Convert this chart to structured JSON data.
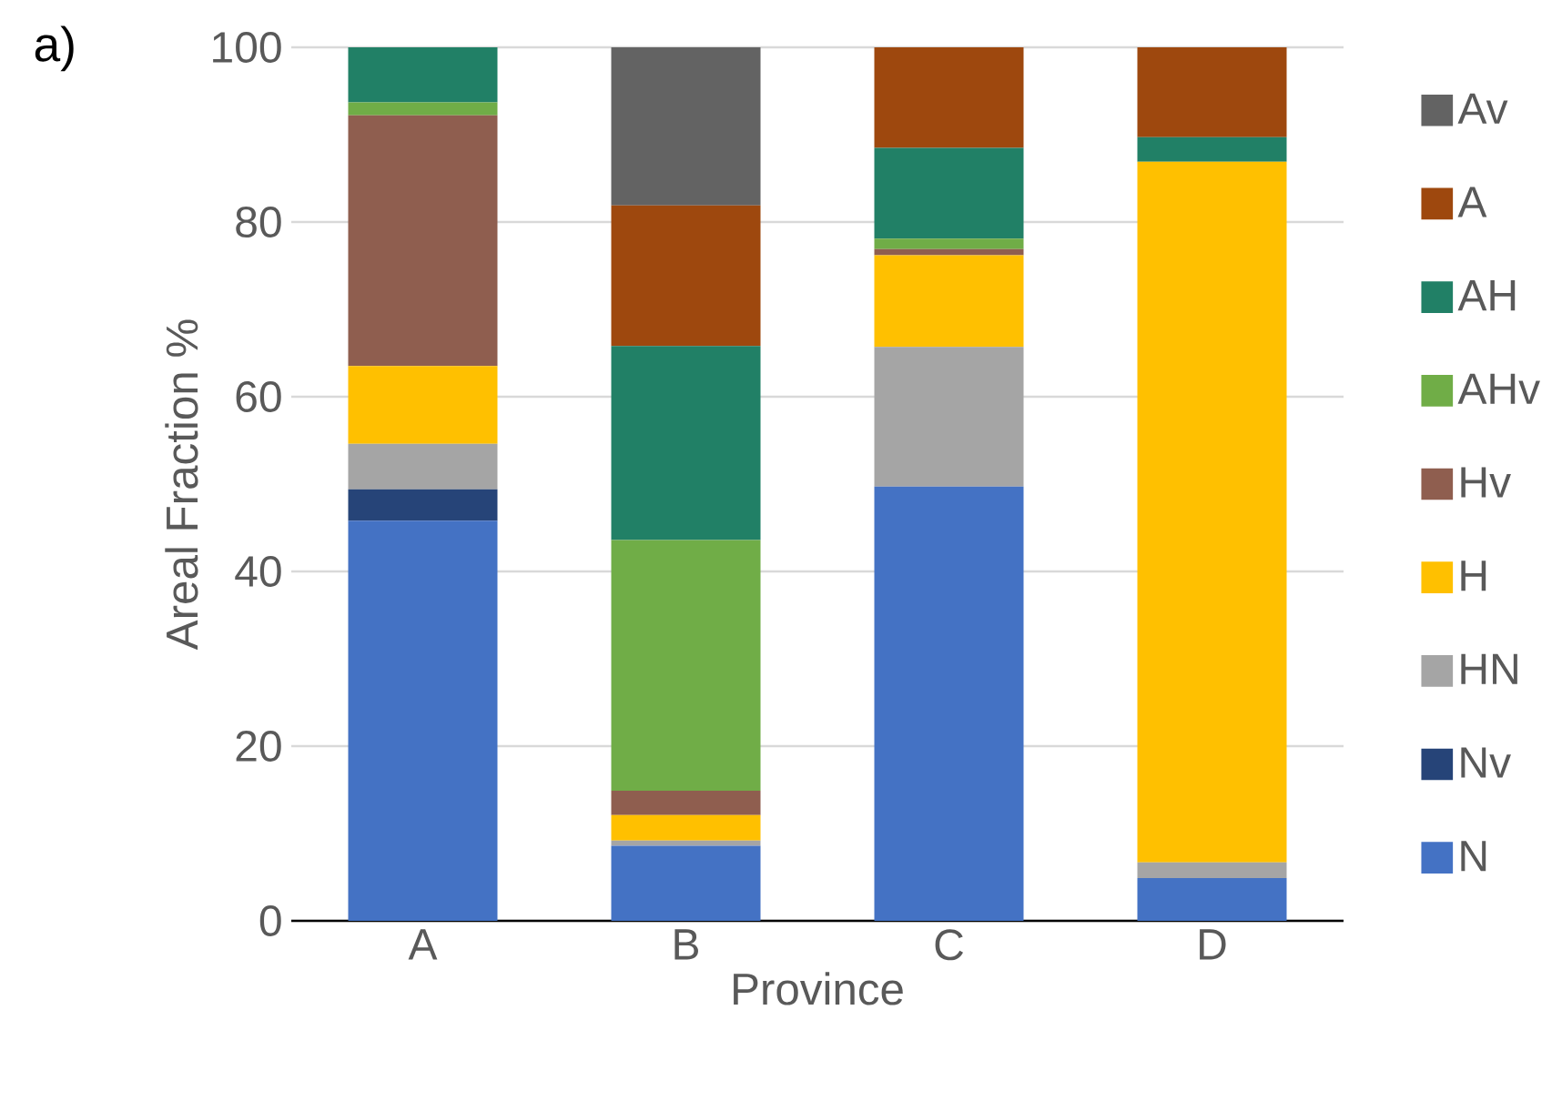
{
  "chart_data": {
    "type": "bar",
    "stacked": true,
    "categories": [
      "A",
      "B",
      "C",
      "D"
    ],
    "xlabel": "Province",
    "ylabel": "Areal Fraction %",
    "annotations": [
      "a)"
    ],
    "ylim": [
      0,
      100
    ],
    "yticks": [
      0,
      20,
      40,
      60,
      80,
      100
    ],
    "grid": "y",
    "legend": "right",
    "series": [
      {
        "name": "N",
        "color": "#4472c4",
        "values": [
          45.8,
          8.6,
          49.7,
          4.9
        ]
      },
      {
        "name": "Nv",
        "color": "#264478",
        "values": [
          3.6,
          0,
          0,
          0
        ]
      },
      {
        "name": "HN",
        "color": "#a5a5a5",
        "values": [
          5.2,
          0.6,
          16.0,
          1.8
        ]
      },
      {
        "name": "H",
        "color": "#ffc000",
        "values": [
          8.9,
          2.9,
          10.5,
          80.2
        ]
      },
      {
        "name": "Hv",
        "color": "#8f5e4f",
        "values": [
          28.7,
          2.8,
          0.7,
          0
        ]
      },
      {
        "name": "AHv",
        "color": "#70ad47",
        "values": [
          1.5,
          28.7,
          1.2,
          0
        ]
      },
      {
        "name": "AH",
        "color": "#218066",
        "values": [
          6.3,
          22.2,
          10.4,
          2.8
        ]
      },
      {
        "name": "A",
        "color": "#9e480e",
        "values": [
          0,
          16.1,
          11.5,
          10.3
        ]
      },
      {
        "name": "Av",
        "color": "#636363",
        "values": [
          0,
          18.1,
          0,
          0
        ]
      }
    ]
  }
}
